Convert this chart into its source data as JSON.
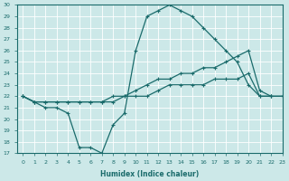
{
  "title": "",
  "xlabel": "Humidex (Indice chaleur)",
  "ylabel": "",
  "bg_color": "#cce8e8",
  "line_color": "#1a6b6b",
  "grid_color": "#ffffff",
  "ylim": [
    17,
    30
  ],
  "xlim": [
    -0.5,
    23
  ],
  "yticks": [
    17,
    18,
    19,
    20,
    21,
    22,
    23,
    24,
    25,
    26,
    27,
    28,
    29,
    30
  ],
  "xticks": [
    0,
    1,
    2,
    3,
    4,
    5,
    6,
    7,
    8,
    9,
    10,
    11,
    12,
    13,
    14,
    15,
    16,
    17,
    18,
    19,
    20,
    21,
    22,
    23
  ],
  "line1_x": [
    0,
    1,
    2,
    3,
    4,
    5,
    6,
    7,
    8,
    9,
    10,
    11,
    12,
    13,
    14,
    15,
    16,
    17,
    18,
    19,
    20,
    21,
    22
  ],
  "line1_y": [
    22,
    21.5,
    21,
    21,
    20.5,
    17.5,
    17.5,
    17,
    19.5,
    20.5,
    26,
    29,
    29.5,
    30,
    29.5,
    29,
    28,
    27,
    26,
    25,
    23,
    22,
    22
  ],
  "line2_x": [
    0,
    1,
    2,
    3,
    4,
    5,
    6,
    7,
    8,
    9,
    10,
    11,
    12,
    13,
    14,
    15,
    16,
    17,
    18,
    19,
    20,
    21,
    22,
    23
  ],
  "line2_y": [
    22,
    21.5,
    21.5,
    21.5,
    21.5,
    21.5,
    21.5,
    21.5,
    22,
    22,
    22.5,
    23,
    23.5,
    23.5,
    24,
    24,
    24.5,
    24.5,
    25,
    25.5,
    26,
    22.5,
    22,
    22
  ],
  "line3_x": [
    0,
    1,
    2,
    3,
    4,
    5,
    6,
    7,
    8,
    9,
    10,
    11,
    12,
    13,
    14,
    15,
    16,
    17,
    18,
    19,
    20,
    21,
    22,
    23
  ],
  "line3_y": [
    22,
    21.5,
    21.5,
    21.5,
    21.5,
    21.5,
    21.5,
    21.5,
    21.5,
    22,
    22,
    22,
    22.5,
    23,
    23,
    23,
    23,
    23.5,
    23.5,
    23.5,
    24,
    22,
    22,
    22
  ]
}
